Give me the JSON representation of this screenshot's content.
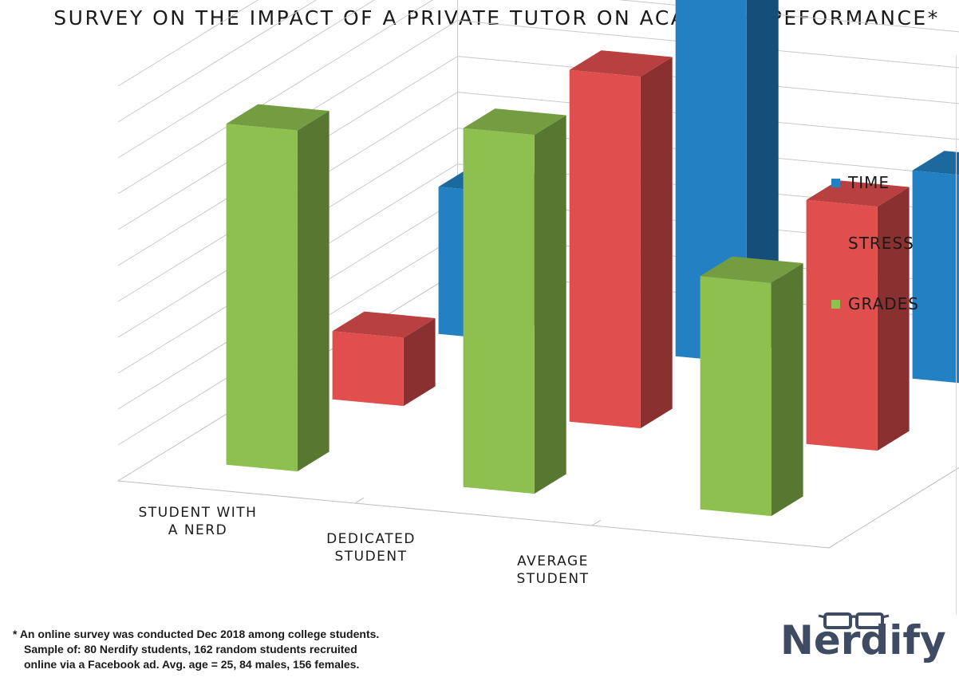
{
  "chart_data": {
    "type": "bar",
    "title": "SURVEY ON THE IMPACT OF A PRIVATE TUTOR ON ACADEMIC PEFORMANCE*",
    "categories": [
      [
        "STUDENT WITH",
        "A NERD"
      ],
      [
        "DEDICATED",
        "STUDENT"
      ],
      [
        "AVERAGE",
        "STUDENT"
      ]
    ],
    "series": [
      {
        "name": "TIME",
        "color": "#2280c3",
        "values": [
          4.1,
          10.7,
          5.8
        ]
      },
      {
        "name": "STRESS",
        "color": "#e04e4e",
        "values": [
          1.9,
          9.8,
          6.8
        ]
      },
      {
        "name": "GRADES",
        "color": "#8ec04f",
        "values": [
          9.5,
          10.0,
          6.5
        ]
      }
    ],
    "ylim": [
      0,
      11
    ],
    "grid": true,
    "projection": "3d",
    "legend": "right"
  },
  "legend": [
    {
      "label": "TIME",
      "color": "#2280c3"
    },
    {
      "label": "STRESS",
      "color": "#e04e4e"
    },
    {
      "label": "GRADES",
      "color": "#8ec04f"
    }
  ],
  "footnote": {
    "line1": "* An online survey was conducted Dec 2018 among college students.",
    "line2": "Sample of: 80 Nerdify students, 162 random students recruited",
    "line3": "online via a Facebook ad. Avg. age = 25, 84 males, 156 females."
  },
  "logo": {
    "text": "Nerdify",
    "icon": "glasses-icon"
  }
}
